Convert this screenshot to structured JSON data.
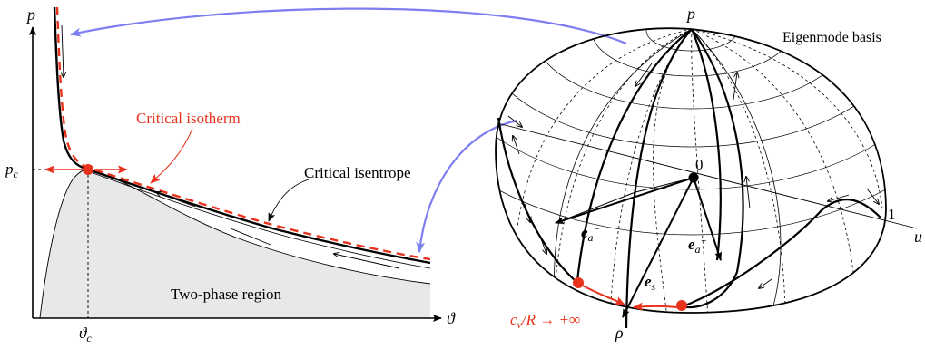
{
  "left_panel": {
    "axis_x_label": "ϑ",
    "axis_y_label": "p",
    "pc_label": "p",
    "pc_sub": "c",
    "thetac_label": "ϑ",
    "thetac_sub": "c",
    "critical_isotherm_label": "Critical isotherm",
    "critical_isentrope_label": "Critical isentrope",
    "two_phase_label": "Two-phase region"
  },
  "right_panel": {
    "title": "Eigenmode basis",
    "axis_p_label": "p",
    "axis_u_label": "u",
    "axis_rho_label": "ρ",
    "origin_label": "0",
    "one_label": "1",
    "ea_minus_label": "e",
    "ea_minus_sub": "a",
    "ea_minus_sup": "−",
    "ea_plus_label": "e",
    "ea_plus_sub": "a",
    "ea_plus_sup": "+",
    "es_label": "e",
    "es_sub": "s",
    "cv_label": "c",
    "cv_sub": "v",
    "cv_rest": "/R → +∞"
  },
  "colors": {
    "red": "#e8321c",
    "blue": "#7d7ff0",
    "gray_fill": "#e8e8e8",
    "ink": "#000000"
  }
}
